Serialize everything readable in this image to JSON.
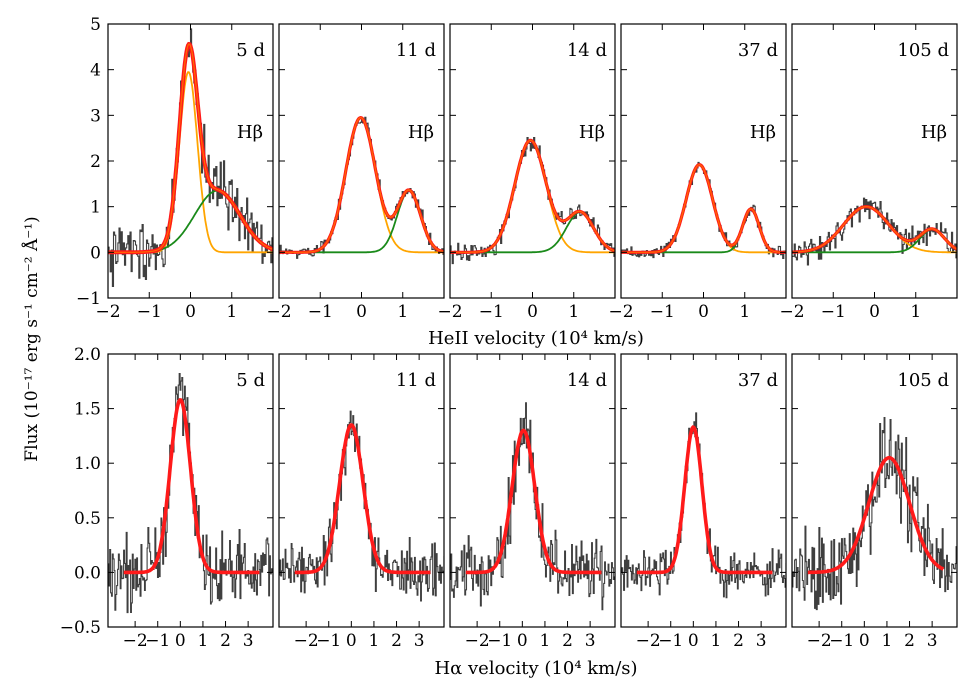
{
  "figure": {
    "y_axis_label": "Flux (10⁻¹⁷ erg s⁻¹ cm⁻² Å⁻¹)",
    "top_row_xlabel": "HeII velocity (10⁴ km/s)",
    "bottom_row_xlabel": "Hα velocity (10⁴ km/s)",
    "line_label": "Hβ"
  },
  "colors": {
    "total_fit": "#ff1a1a",
    "total_fit_thin": "#ff6a00",
    "heii_component": "#ffa500",
    "hbeta_component": "#1a8a1a",
    "spectrum": "#3f3f3f"
  },
  "chart_data": [
    {
      "type": "line",
      "row": "HeII",
      "xlabel": "HeII velocity (10⁴ km/s)",
      "ylabel": "Flux (10⁻¹⁷ erg s⁻¹ cm⁻² Å⁻¹)",
      "xlim": [
        -2,
        2
      ],
      "ylim": [
        -1,
        5
      ],
      "x_ticks": [
        "−2",
        "−1",
        "0",
        "1"
      ],
      "y_ticks": [
        "−1",
        "0",
        "1",
        "2",
        "3",
        "4",
        "5"
      ],
      "y_tick_values": [
        -1,
        0,
        1,
        2,
        3,
        4,
        5
      ],
      "panels": [
        {
          "epoch": "5 d",
          "line_label": "Hβ",
          "noise": 0.7,
          "seed": 3,
          "heii": {
            "amp": 3.95,
            "center": -0.05,
            "sigma": 0.22
          },
          "hbeta": {
            "amp": 1.35,
            "center": 0.65,
            "sigma": 0.55
          }
        },
        {
          "epoch": "11 d",
          "line_label": "Hβ",
          "noise": 0.15,
          "seed": 7,
          "heii": {
            "amp": 2.95,
            "center": -0.02,
            "sigma": 0.36
          },
          "hbeta": {
            "amp": 1.35,
            "center": 1.15,
            "sigma": 0.28
          }
        },
        {
          "epoch": "14 d",
          "line_label": "Hβ",
          "noise": 0.2,
          "seed": 11,
          "heii": {
            "amp": 2.45,
            "center": -0.05,
            "sigma": 0.38
          },
          "hbeta": {
            "amp": 0.88,
            "center": 1.15,
            "sigma": 0.33
          }
        },
        {
          "epoch": "37 d",
          "line_label": "Hβ",
          "noise": 0.15,
          "seed": 19,
          "heii": {
            "amp": 1.92,
            "center": -0.1,
            "sigma": 0.32
          },
          "hbeta": {
            "amp": 0.95,
            "center": 1.15,
            "sigma": 0.2
          }
        },
        {
          "epoch": "105 d",
          "line_label": "Hβ",
          "noise": 0.3,
          "seed": 23,
          "heii": {
            "amp": 1.0,
            "center": -0.2,
            "sigma": 0.55
          },
          "hbeta": {
            "amp": 0.5,
            "center": 1.4,
            "sigma": 0.3
          }
        }
      ]
    },
    {
      "type": "line",
      "row": "Halpha",
      "xlabel": "Hα velocity (10⁴ km/s)",
      "ylabel": "Flux (10⁻¹⁷ erg s⁻¹ cm⁻² Å⁻¹)",
      "xlim": [
        -3.2,
        4.1
      ],
      "ylim": [
        -0.5,
        2.0
      ],
      "x_ticks": [
        "−2",
        "−1",
        "0",
        "1",
        "2",
        "3"
      ],
      "y_ticks": [
        "−0.5",
        "0.0",
        "0.5",
        "1.0",
        "1.5",
        "2.0"
      ],
      "y_tick_values": [
        -0.5,
        0.0,
        0.5,
        1.0,
        1.5,
        2.0
      ],
      "fit_range": [
        -2.5,
        3.5
      ],
      "panels": [
        {
          "epoch": "5 d",
          "noise": 0.32,
          "seed": 31,
          "fit": {
            "amp": 1.58,
            "center": 0.0,
            "sigma": 0.45
          }
        },
        {
          "epoch": "11 d",
          "noise": 0.25,
          "seed": 37,
          "fit": {
            "amp": 1.35,
            "center": 0.0,
            "sigma": 0.52
          }
        },
        {
          "epoch": "14 d",
          "noise": 0.3,
          "seed": 41,
          "fit": {
            "amp": 1.3,
            "center": 0.05,
            "sigma": 0.5
          }
        },
        {
          "epoch": "37 d",
          "noise": 0.2,
          "seed": 43,
          "fit": {
            "amp": 1.33,
            "center": 0.0,
            "sigma": 0.38
          }
        },
        {
          "epoch": "105 d",
          "noise": 0.4,
          "seed": 47,
          "fit": {
            "amp": 1.05,
            "center": 1.1,
            "sigma": 0.9
          }
        }
      ]
    }
  ]
}
